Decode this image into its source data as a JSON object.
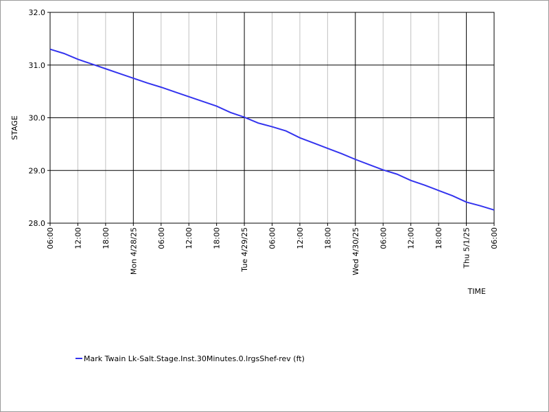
{
  "chart_data": {
    "type": "line",
    "y_label": "STAGE",
    "x_label": "TIME",
    "x": [
      "2025-04-27T06:00",
      "2025-04-27T09:00",
      "2025-04-27T12:00",
      "2025-04-27T15:00",
      "2025-04-27T18:00",
      "2025-04-27T21:00",
      "2025-04-28T00:00",
      "2025-04-28T03:00",
      "2025-04-28T06:00",
      "2025-04-28T09:00",
      "2025-04-28T12:00",
      "2025-04-28T15:00",
      "2025-04-28T18:00",
      "2025-04-28T21:00",
      "2025-04-29T00:00",
      "2025-04-29T03:00",
      "2025-04-29T06:00",
      "2025-04-29T09:00",
      "2025-04-29T12:00",
      "2025-04-29T15:00",
      "2025-04-29T18:00",
      "2025-04-29T21:00",
      "2025-04-30T00:00",
      "2025-04-30T03:00",
      "2025-04-30T06:00",
      "2025-04-30T09:00",
      "2025-04-30T12:00",
      "2025-04-30T15:00",
      "2025-04-30T18:00",
      "2025-04-30T21:00",
      "2025-05-01T00:00",
      "2025-05-01T03:00",
      "2025-05-01T06:00"
    ],
    "series": [
      {
        "name": "Mark Twain Lk-Salt.Stage.Inst.30Minutes.0.lrgsShef-rev (ft)",
        "color": "#3333ee",
        "values": [
          31.3,
          31.22,
          31.11,
          31.02,
          30.93,
          30.84,
          30.75,
          30.66,
          30.58,
          30.49,
          30.4,
          30.31,
          30.22,
          30.1,
          30.01,
          29.9,
          29.83,
          29.75,
          29.62,
          29.52,
          29.42,
          29.32,
          29.21,
          29.11,
          29.01,
          28.93,
          28.81,
          28.72,
          28.62,
          28.52,
          28.4,
          28.33,
          28.25
        ]
      }
    ],
    "xlim": [
      "2025-04-27T06:00",
      "2025-05-01T06:00"
    ],
    "xticks": [
      {
        "value": "2025-04-27T06:00",
        "label": "06:00"
      },
      {
        "value": "2025-04-27T12:00",
        "label": "12:00"
      },
      {
        "value": "2025-04-27T18:00",
        "label": "18:00"
      },
      {
        "value": "2025-04-28T00:00",
        "label": "Mon 4/28/25"
      },
      {
        "value": "2025-04-28T06:00",
        "label": "06:00"
      },
      {
        "value": "2025-04-28T12:00",
        "label": "12:00"
      },
      {
        "value": "2025-04-28T18:00",
        "label": "18:00"
      },
      {
        "value": "2025-04-29T00:00",
        "label": "Tue 4/29/25"
      },
      {
        "value": "2025-04-29T06:00",
        "label": "06:00"
      },
      {
        "value": "2025-04-29T12:00",
        "label": "12:00"
      },
      {
        "value": "2025-04-29T18:00",
        "label": "18:00"
      },
      {
        "value": "2025-04-30T00:00",
        "label": "Wed 4/30/25"
      },
      {
        "value": "2025-04-30T06:00",
        "label": "06:00"
      },
      {
        "value": "2025-04-30T12:00",
        "label": "12:00"
      },
      {
        "value": "2025-04-30T18:00",
        "label": "18:00"
      },
      {
        "value": "2025-05-01T00:00",
        "label": "Thu 5/1/25"
      },
      {
        "value": "2025-05-01T06:00",
        "label": "06:00"
      }
    ],
    "ylim": [
      28,
      32
    ],
    "yticks": [
      {
        "value": 28,
        "label": "28.0"
      },
      {
        "value": 29,
        "label": "29.0"
      },
      {
        "value": 30,
        "label": "30.0"
      },
      {
        "value": 31,
        "label": "31.0"
      },
      {
        "value": 32,
        "label": "32.0"
      }
    ],
    "grid": true
  }
}
